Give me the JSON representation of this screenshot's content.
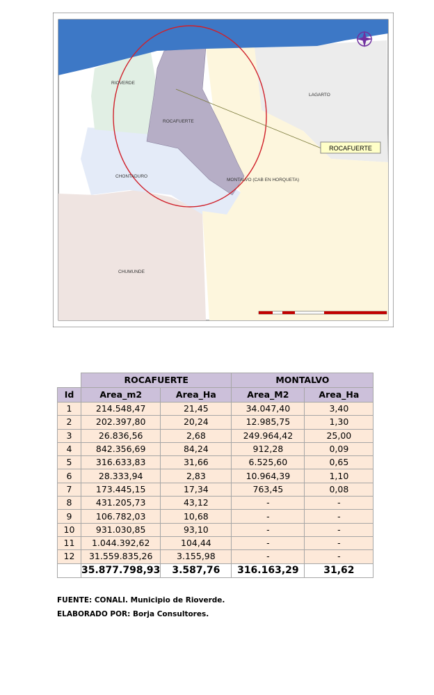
{
  "map": {
    "labels": [
      "RIOVERDE",
      "ROCAFUERTE",
      "LAGARTO",
      "CHONTADURO",
      "MONTALVO (CAB EN HORQUETA)",
      "CHUMUNDE"
    ],
    "callout": "ROCAFUERTE"
  },
  "table": {
    "groups": [
      "ROCAFUERTE",
      "MONTALVO"
    ],
    "header": [
      "Id",
      "Area_m2",
      "Area_Ha",
      "Area_M2",
      "Area_Ha"
    ],
    "rows": [
      [
        1,
        "214.548,47",
        "21,45",
        "34.047,40",
        "3,40"
      ],
      [
        2,
        "202.397,80",
        "20,24",
        "12.985,75",
        "1,30"
      ],
      [
        3,
        "26.836,56",
        "2,68",
        "249.964,42",
        "25,00"
      ],
      [
        4,
        "842.356,69",
        "84,24",
        "912,28",
        "0,09"
      ],
      [
        5,
        "316.633,83",
        "31,66",
        "6.525,60",
        "0,65"
      ],
      [
        6,
        "28.333,94",
        "2,83",
        "10.964,39",
        "1,10"
      ],
      [
        7,
        "173.445,15",
        "17,34",
        "763,45",
        "0,08"
      ],
      [
        8,
        "431.205,73",
        "43,12",
        "-",
        "-"
      ],
      [
        9,
        "106.782,03",
        "10,68",
        "-",
        "-"
      ],
      [
        10,
        "931.030,85",
        "93,10",
        "-",
        "-"
      ],
      [
        11,
        "1.044.392,62",
        "104,44",
        "-",
        "-"
      ],
      [
        12,
        "31.559.835,26",
        "3.155,98",
        "-",
        "-"
      ]
    ],
    "total": [
      "35.877.798,93",
      "3.587,76",
      "316.163,29",
      "31,62"
    ]
  },
  "source": "FUENTE: CONALI. Municipio de Rioverde.",
  "credit": "ELABORADO POR: Borja Consultores."
}
